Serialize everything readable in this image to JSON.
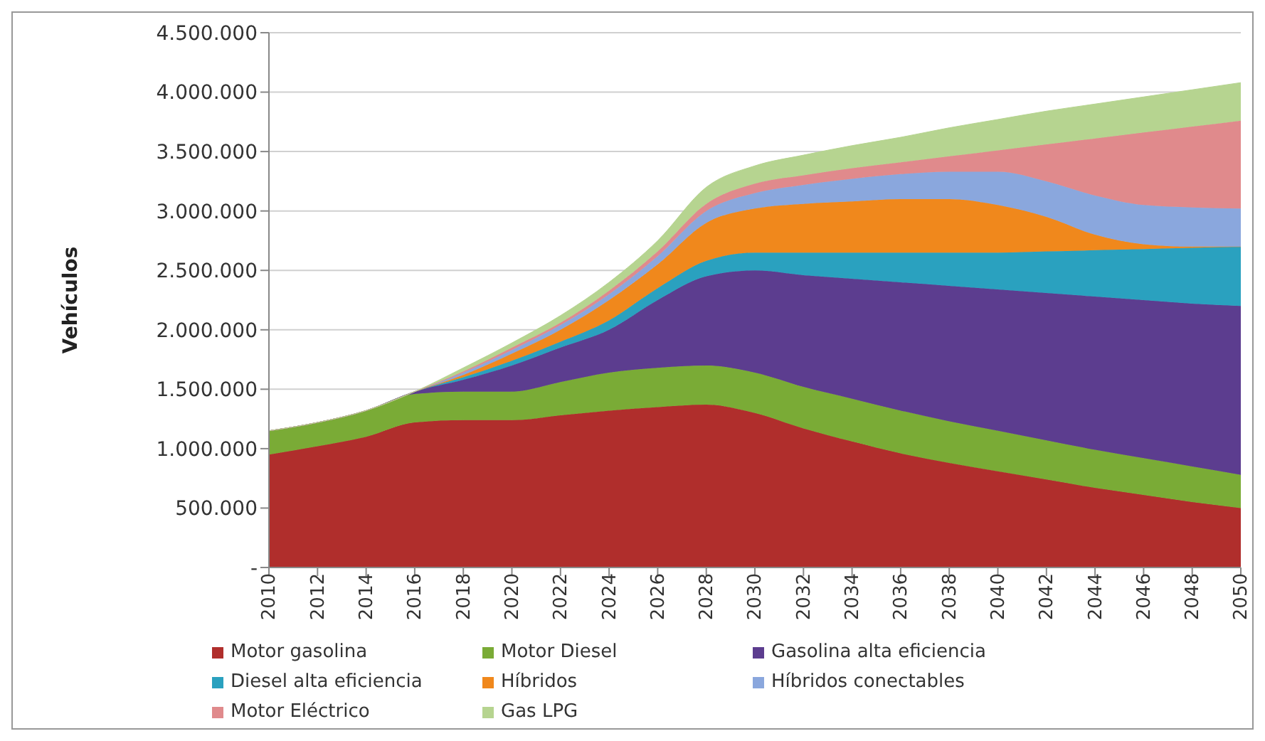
{
  "chart_data": {
    "type": "area",
    "stacked": true,
    "ylabel": "Vehículos",
    "categories": [
      "2010",
      "2012",
      "2014",
      "2016",
      "2018",
      "2020",
      "2022",
      "2024",
      "2026",
      "2028",
      "2030",
      "2032",
      "2034",
      "2036",
      "2038",
      "2040",
      "2042",
      "2044",
      "2046",
      "2048",
      "2050"
    ],
    "series": [
      {
        "name": "Motor gasolina",
        "color": "#b02e2c",
        "values": [
          950000,
          1020000,
          1100000,
          1220000,
          1240000,
          1240000,
          1280000,
          1320000,
          1350000,
          1370000,
          1300000,
          1170000,
          1060000,
          960000,
          880000,
          810000,
          740000,
          670000,
          610000,
          550000,
          500000
        ]
      },
      {
        "name": "Motor Diesel",
        "color": "#7aab36",
        "values": [
          200000,
          200000,
          220000,
          240000,
          240000,
          240000,
          280000,
          320000,
          330000,
          330000,
          340000,
          350000,
          360000,
          360000,
          350000,
          340000,
          330000,
          320000,
          310000,
          300000,
          280000
        ]
      },
      {
        "name": "Gasolina alta eficiencia",
        "color": "#5c3d8f",
        "values": [
          0,
          0,
          0,
          20000,
          100000,
          220000,
          290000,
          360000,
          570000,
          750000,
          860000,
          940000,
          1010000,
          1080000,
          1140000,
          1190000,
          1240000,
          1290000,
          1330000,
          1370000,
          1420000
        ]
      },
      {
        "name": "Diesel alta eficiencia",
        "color": "#2aa1bf",
        "values": [
          0,
          0,
          0,
          0,
          20000,
          40000,
          50000,
          80000,
          100000,
          130000,
          150000,
          190000,
          220000,
          250000,
          280000,
          310000,
          350000,
          390000,
          430000,
          470000,
          500000
        ]
      },
      {
        "name": "Híbridos",
        "color": "#f0881c",
        "values": [
          0,
          0,
          0,
          0,
          20000,
          60000,
          100000,
          170000,
          200000,
          320000,
          370000,
          410000,
          430000,
          450000,
          450000,
          400000,
          290000,
          130000,
          40000,
          10000,
          0
        ]
      },
      {
        "name": "Híbridos conectables",
        "color": "#8aa7dd",
        "values": [
          0,
          0,
          0,
          0,
          20000,
          30000,
          40000,
          50000,
          70000,
          100000,
          130000,
          160000,
          190000,
          210000,
          230000,
          280000,
          300000,
          330000,
          330000,
          330000,
          320000
        ]
      },
      {
        "name": "Motor Eléctrico",
        "color": "#e08a8c",
        "values": [
          0,
          0,
          0,
          0,
          10000,
          20000,
          20000,
          30000,
          40000,
          60000,
          80000,
          80000,
          90000,
          100000,
          130000,
          180000,
          310000,
          480000,
          610000,
          680000,
          740000
        ]
      },
      {
        "name": "Gas LPG",
        "color": "#b6d490",
        "values": [
          0,
          0,
          0,
          0,
          30000,
          40000,
          60000,
          70000,
          90000,
          140000,
          150000,
          170000,
          190000,
          210000,
          240000,
          260000,
          280000,
          290000,
          300000,
          310000,
          320000
        ]
      }
    ],
    "ylim": [
      0,
      4500000
    ],
    "yticks": [
      {
        "value": 0,
        "label": "-"
      },
      {
        "value": 500000,
        "label": "500.000"
      },
      {
        "value": 1000000,
        "label": "1.000.000"
      },
      {
        "value": 1500000,
        "label": "1.500.000"
      },
      {
        "value": 2000000,
        "label": "2.000.000"
      },
      {
        "value": 2500000,
        "label": "2.500.000"
      },
      {
        "value": 3000000,
        "label": "3.000.000"
      },
      {
        "value": 3500000,
        "label": "3.500.000"
      },
      {
        "value": 4000000,
        "label": "4.000.000"
      },
      {
        "value": 4500000,
        "label": "4.500.000"
      }
    ],
    "grid": "y",
    "legend": "bottom",
    "marker": "none"
  }
}
